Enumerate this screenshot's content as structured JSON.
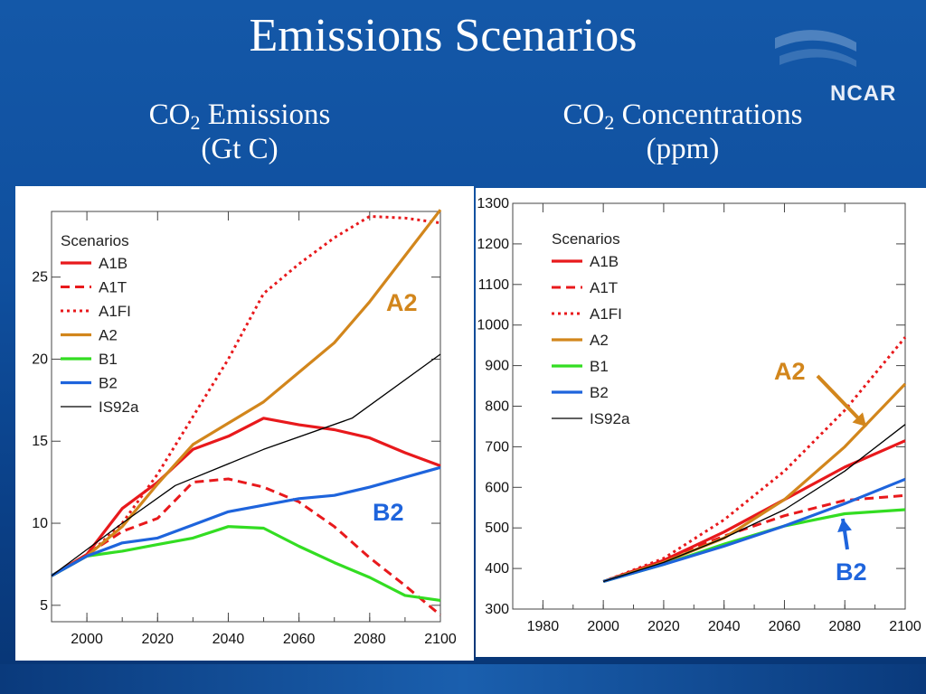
{
  "slide": {
    "title": "Emissions Scenarios",
    "logo_text": "NCAR",
    "left_heading": {
      "co": "CO",
      "sub": "2",
      "rest": " Emissions",
      "unit": "(Gt C)"
    },
    "right_heading": {
      "co": "CO",
      "sub": "2",
      "rest": " Concentrations",
      "unit": "(ppm)"
    }
  },
  "colors": {
    "A1B": "#e8191c",
    "A1T": "#e8191c",
    "A1FI": "#e8191c",
    "A2": "#d2861c",
    "B1": "#33dd22",
    "B2": "#1e64dc",
    "IS92a": "#000000",
    "background": "#1458a8"
  },
  "chart_data": [
    {
      "type": "line",
      "title": "",
      "xlabel": "",
      "ylabel": "",
      "xlim": [
        1990,
        2100
      ],
      "ylim": [
        4,
        29
      ],
      "x_ticks": [
        2000,
        2020,
        2040,
        2060,
        2080,
        2100
      ],
      "y_ticks": [
        5,
        10,
        15,
        20,
        25
      ],
      "legend_title": "Scenarios",
      "legend_position": "top-left",
      "annotations": [
        {
          "text": "A2",
          "color": "#d2861c"
        },
        {
          "text": "B2",
          "color": "#1e64dc"
        }
      ],
      "series": [
        {
          "name": "A1B",
          "style": "solid",
          "x": [
            1990,
            2000,
            2010,
            2020,
            2030,
            2040,
            2050,
            2060,
            2070,
            2080,
            2090,
            2100
          ],
          "y": [
            6.8,
            8.1,
            10.9,
            12.5,
            14.5,
            15.3,
            16.4,
            16.0,
            15.7,
            15.2,
            14.3,
            13.5
          ]
        },
        {
          "name": "A1T",
          "style": "dashed",
          "x": [
            1990,
            2000,
            2010,
            2020,
            2030,
            2040,
            2050,
            2060,
            2070,
            2080,
            2090,
            2100
          ],
          "y": [
            6.8,
            8.1,
            9.5,
            10.3,
            12.5,
            12.7,
            12.2,
            11.3,
            9.8,
            7.9,
            6.2,
            4.4
          ]
        },
        {
          "name": "A1FI",
          "style": "dotted",
          "x": [
            1990,
            2000,
            2010,
            2020,
            2030,
            2040,
            2050,
            2060,
            2070,
            2080,
            2090,
            2100
          ],
          "y": [
            6.8,
            8.0,
            10.0,
            13.0,
            16.5,
            20.0,
            24.0,
            25.8,
            27.4,
            28.7,
            28.6,
            28.3
          ]
        },
        {
          "name": "A2",
          "style": "solid",
          "x": [
            1990,
            2000,
            2010,
            2020,
            2030,
            2040,
            2050,
            2060,
            2070,
            2080,
            2090,
            2100
          ],
          "y": [
            6.8,
            8.0,
            9.8,
            12.4,
            14.8,
            16.1,
            17.4,
            19.2,
            21.0,
            23.5,
            26.3,
            29.1
          ]
        },
        {
          "name": "B1",
          "style": "solid",
          "x": [
            1990,
            2000,
            2010,
            2020,
            2030,
            2040,
            2050,
            2060,
            2070,
            2080,
            2090,
            2100
          ],
          "y": [
            6.8,
            8.0,
            8.3,
            8.7,
            9.1,
            9.8,
            9.7,
            8.6,
            7.6,
            6.7,
            5.6,
            5.3
          ]
        },
        {
          "name": "B2",
          "style": "solid",
          "x": [
            1990,
            2000,
            2010,
            2020,
            2030,
            2040,
            2050,
            2060,
            2070,
            2080,
            2090,
            2100
          ],
          "y": [
            6.8,
            8.0,
            8.8,
            9.1,
            9.9,
            10.7,
            11.1,
            11.5,
            11.7,
            12.2,
            12.8,
            13.4
          ]
        },
        {
          "name": "IS92a",
          "style": "thin",
          "x": [
            1990,
            2000,
            2010,
            2025,
            2050,
            2075,
            2100
          ],
          "y": [
            6.8,
            8.4,
            10.0,
            12.3,
            14.5,
            16.4,
            20.3
          ]
        }
      ]
    },
    {
      "type": "line",
      "title": "",
      "xlabel": "",
      "ylabel": "",
      "xlim": [
        1970,
        2100
      ],
      "ylim": [
        300,
        1300
      ],
      "x_ticks": [
        1980,
        2000,
        2020,
        2040,
        2060,
        2080,
        2100
      ],
      "y_ticks": [
        300,
        400,
        500,
        600,
        700,
        800,
        900,
        1000,
        1100,
        1200,
        1300
      ],
      "legend_title": "Scenarios",
      "legend_position": "top-left",
      "annotations": [
        {
          "text": "A2",
          "color": "#d2861c"
        },
        {
          "text": "B2",
          "color": "#1e64dc"
        }
      ],
      "series": [
        {
          "name": "A1B",
          "style": "solid",
          "x": [
            2000,
            2020,
            2040,
            2060,
            2080,
            2100
          ],
          "y": [
            368,
            420,
            490,
            570,
            650,
            715
          ]
        },
        {
          "name": "A1T",
          "style": "dashed",
          "x": [
            2000,
            2020,
            2040,
            2060,
            2080,
            2100
          ],
          "y": [
            368,
            420,
            480,
            530,
            568,
            580
          ]
        },
        {
          "name": "A1FI",
          "style": "dotted",
          "x": [
            2000,
            2020,
            2040,
            2060,
            2080,
            2100
          ],
          "y": [
            368,
            425,
            520,
            640,
            790,
            970
          ]
        },
        {
          "name": "A2",
          "style": "solid",
          "x": [
            2000,
            2020,
            2040,
            2060,
            2080,
            2100
          ],
          "y": [
            368,
            415,
            475,
            570,
            700,
            855
          ]
        },
        {
          "name": "B1",
          "style": "solid",
          "x": [
            2000,
            2020,
            2040,
            2060,
            2080,
            2100
          ],
          "y": [
            368,
            410,
            460,
            505,
            535,
            545
          ]
        },
        {
          "name": "B2",
          "style": "solid",
          "x": [
            2000,
            2020,
            2040,
            2060,
            2080,
            2100
          ],
          "y": [
            368,
            410,
            455,
            505,
            560,
            620
          ]
        },
        {
          "name": "IS92a",
          "style": "thin",
          "x": [
            2000,
            2020,
            2040,
            2060,
            2080,
            2100
          ],
          "y": [
            368,
            415,
            475,
            545,
            640,
            755
          ]
        }
      ]
    }
  ]
}
